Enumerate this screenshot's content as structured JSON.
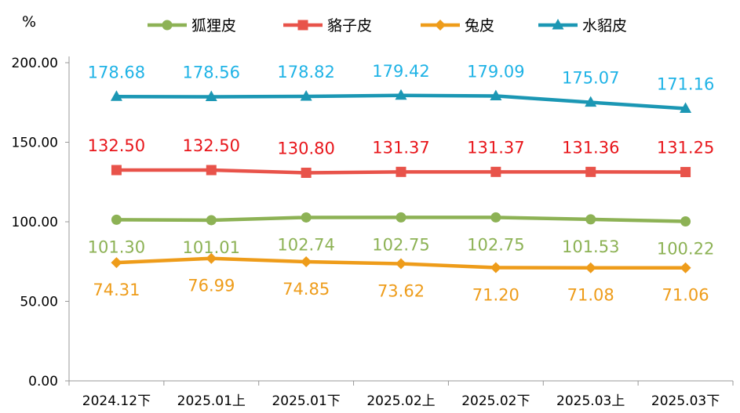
{
  "chart_data": {
    "type": "line",
    "unit_label": "%",
    "categories": [
      "2024.12下",
      "2025.01上",
      "2025.01下",
      "2025.02上",
      "2025.02下",
      "2025.03上",
      "2025.03下"
    ],
    "y_ticks": [
      "0.00",
      "50.00",
      "100.00",
      "150.00",
      "200.00"
    ],
    "ylim": [
      0,
      200
    ],
    "grid": false,
    "legend_position": "top",
    "series": [
      {
        "name": "狐狸皮",
        "color": "#8db255",
        "label_color": "#8db255",
        "marker": "circle",
        "values": [
          101.3,
          101.01,
          102.74,
          102.75,
          102.75,
          101.53,
          100.22
        ],
        "labels": [
          "101.30",
          "101.01",
          "102.74",
          "102.75",
          "102.75",
          "101.53",
          "100.22"
        ],
        "label_side": "below"
      },
      {
        "name": "貉子皮",
        "color": "#e8534a",
        "label_color": "#e8161b",
        "marker": "square",
        "values": [
          132.5,
          132.5,
          130.8,
          131.37,
          131.37,
          131.36,
          131.25
        ],
        "labels": [
          "132.50",
          "132.50",
          "130.80",
          "131.37",
          "131.37",
          "131.36",
          "131.25"
        ],
        "label_side": "above"
      },
      {
        "name": "兔皮",
        "color": "#ee9c1a",
        "label_color": "#ee9c1a",
        "marker": "diamond",
        "values": [
          74.31,
          76.99,
          74.85,
          73.62,
          71.2,
          71.08,
          71.06
        ],
        "labels": [
          "74.31",
          "76.99",
          "74.85",
          "73.62",
          "71.20",
          "71.08",
          "71.06"
        ],
        "label_side": "below"
      },
      {
        "name": "水貂皮",
        "color": "#1b97b4",
        "label_color": "#1fb3e6",
        "marker": "triangle",
        "values": [
          178.68,
          178.56,
          178.82,
          179.42,
          179.09,
          175.07,
          171.16
        ],
        "labels": [
          "178.68",
          "178.56",
          "178.82",
          "179.42",
          "179.09",
          "175.07",
          "171.16"
        ],
        "label_side": "above"
      }
    ]
  }
}
